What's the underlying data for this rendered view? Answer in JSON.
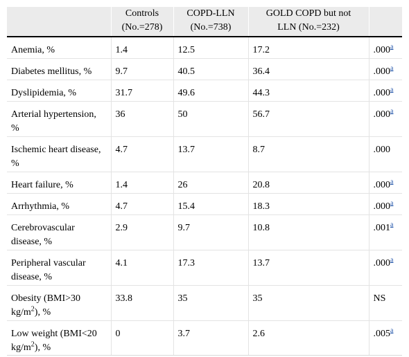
{
  "header": {
    "col0": "",
    "col1_line1": "Controls",
    "col1_line2": "(No.=278)",
    "col2_line1": "COPD-LLN",
    "col2_line2": "(No.=738)",
    "col3_line1": "GOLD COPD but not",
    "col3_line2": "LLN (No.=232)",
    "col4": ""
  },
  "footnote_marker": "a",
  "rows": [
    {
      "label": "Anemia, %",
      "controls": "1.4",
      "copd_lln": "12.5",
      "gold": "17.2",
      "p": ".000",
      "marker": "a"
    },
    {
      "label": "Diabetes mellitus, %",
      "controls": "9.7",
      "copd_lln": "40.5",
      "gold": "36.4",
      "p": ".000",
      "marker": "a"
    },
    {
      "label": "Dyslipidemia, %",
      "controls": "31.7",
      "copd_lln": "49.6",
      "gold": "44.3",
      "p": ".000",
      "marker": "a"
    },
    {
      "label": "Arterial hypertension, %",
      "controls": "36",
      "copd_lln": "50",
      "gold": "56.7",
      "p": ".000",
      "marker": "a"
    },
    {
      "label": "Ischemic heart disease, %",
      "controls": "4.7",
      "copd_lln": "13.7",
      "gold": "8.7",
      "p": ".000",
      "marker": ""
    },
    {
      "label": "Heart failure, %",
      "controls": "1.4",
      "copd_lln": "26",
      "gold": "20.8",
      "p": ".000",
      "marker": "a"
    },
    {
      "label": "Arrhythmia, %",
      "controls": "4.7",
      "copd_lln": "15.4",
      "gold": "18.3",
      "p": ".000",
      "marker": "a"
    },
    {
      "label": "Cerebrovascular disease, %",
      "controls": "2.9",
      "copd_lln": "9.7",
      "gold": "10.8",
      "p": ".001",
      "marker": "a"
    },
    {
      "label": "Peripheral vascular disease, %",
      "controls": "4.1",
      "copd_lln": "17.3",
      "gold": "13.7",
      "p": ".000",
      "marker": "a"
    },
    {
      "label_pre": "Obesity (BMI>30 kg/m",
      "label_sup": "2",
      "label_post": "), %",
      "controls": "33.8",
      "copd_lln": "35",
      "gold": "35",
      "p": "NS",
      "marker": ""
    },
    {
      "label_pre": "Low weight (BMI<20 kg/m",
      "label_sup": "2",
      "label_post": "), %",
      "controls": "0",
      "copd_lln": "3.7",
      "gold": "2.6",
      "p": ".005",
      "marker": "a"
    }
  ]
}
